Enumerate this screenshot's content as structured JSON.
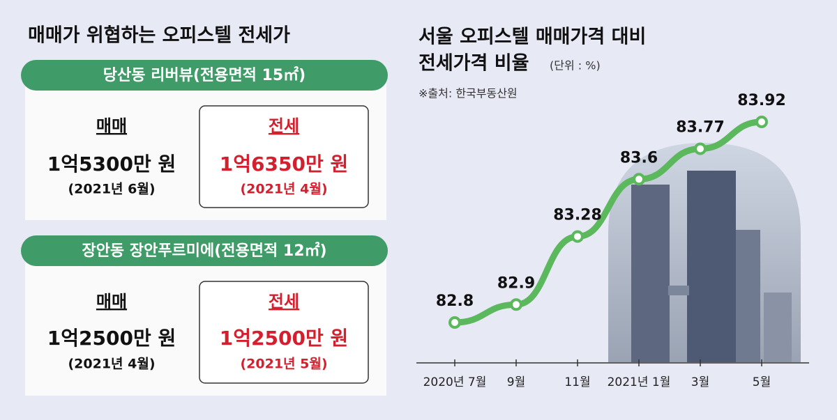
{
  "panel": {
    "title": "매매가 위협하는 오피스텔 전세가",
    "cards": [
      {
        "header": "당산동 리버뷰(전용면적 15㎡)",
        "sale": {
          "label": "매매",
          "price": "1억5300만 원",
          "date": "(2021년 6월)"
        },
        "jeonse": {
          "label": "전세",
          "price": "1억6350만 원",
          "date": "(2021년 4월)"
        }
      },
      {
        "header": "장안동 장안푸르미에(전용면적 12㎡)",
        "sale": {
          "label": "매매",
          "price": "1억2500만 원",
          "date": "(2021년 4월)"
        },
        "jeonse": {
          "label": "전세",
          "price": "1억2500만 원",
          "date": "(2021년 5월)"
        }
      }
    ]
  },
  "chart_data": {
    "type": "line",
    "title": [
      "서울 오피스텔 매매가격 대비",
      "전세가격 비율"
    ],
    "subtitle": "(단위 : %)",
    "source": "※출처: 한국부동산원",
    "categories": [
      "2020년 7월",
      "9월",
      "11월",
      "2021년 1월",
      "3월",
      "5월"
    ],
    "values": [
      82.8,
      82.9,
      83.28,
      83.6,
      83.77,
      83.92
    ],
    "color": "#5cb85c"
  }
}
